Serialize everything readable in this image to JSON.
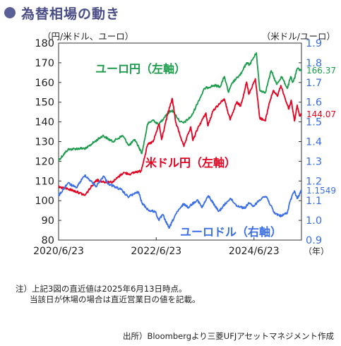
{
  "header": {
    "title": "為替相場の動き"
  },
  "units": {
    "left": "（円/米ドル、ユーロ）",
    "right": "（米ドル/ユーロ）",
    "x": "（年）"
  },
  "notes": {
    "line1": "注）上記3図の直近値は2025年6月13日時点。",
    "line2": "当該日が休場の場合は直近営業日の値を記載。"
  },
  "source": "出所）Bloombergより三菱UFJアセットマネジメント作成",
  "colors": {
    "eurjpy": "#1a9c4a",
    "usdjpy": "#e6001f",
    "eurusd": "#3a6ee8",
    "title": "#4a4d86",
    "right_axis": "#3a6ee8"
  },
  "chart_data": {
    "type": "line",
    "x_ticks": [
      "2020/6/23",
      "2022/6/23",
      "2024/6/23"
    ],
    "x_range": [
      "2020-06-23",
      "2025-06-13"
    ],
    "y_left": {
      "ticks": [
        80,
        90,
        100,
        110,
        120,
        130,
        140,
        150,
        160,
        170,
        180
      ],
      "range": [
        80,
        180
      ]
    },
    "y_right": {
      "ticks": [
        0.9,
        1.0,
        1.1,
        1.2,
        1.3,
        1.4,
        1.5,
        1.6,
        1.7,
        1.8,
        1.9
      ],
      "range": [
        0.9,
        1.9
      ]
    },
    "grid": false,
    "series": [
      {
        "name": "ユーロ円（左軸）",
        "axis": "left",
        "last_label": "166.37",
        "points": [
          [
            "2020-06-23",
            120.5
          ],
          [
            "2020-09-01",
            126
          ],
          [
            "2020-12-01",
            126.5
          ],
          [
            "2021-01-15",
            126.5
          ],
          [
            "2021-03-01",
            129
          ],
          [
            "2021-05-20",
            133
          ],
          [
            "2021-08-01",
            130
          ],
          [
            "2021-10-15",
            133
          ],
          [
            "2021-12-01",
            128
          ],
          [
            "2022-01-15",
            131
          ],
          [
            "2022-03-08",
            124
          ],
          [
            "2022-04-20",
            139
          ],
          [
            "2022-06-01",
            141
          ],
          [
            "2022-07-10",
            138.5
          ],
          [
            "2022-09-10",
            144
          ],
          [
            "2022-10-20",
            146
          ],
          [
            "2022-12-20",
            140
          ],
          [
            "2023-01-15",
            139.5
          ],
          [
            "2023-03-15",
            143
          ],
          [
            "2023-05-01",
            150
          ],
          [
            "2023-06-20",
            157
          ],
          [
            "2023-08-28",
            158.5
          ],
          [
            "2023-10-15",
            158
          ],
          [
            "2023-11-15",
            163
          ],
          [
            "2023-12-15",
            155
          ],
          [
            "2024-01-15",
            160
          ],
          [
            "2024-03-20",
            164.5
          ],
          [
            "2024-04-29",
            170
          ],
          [
            "2024-05-20",
            169
          ],
          [
            "2024-07-11",
            175
          ],
          [
            "2024-08-05",
            156
          ],
          [
            "2024-09-16",
            155
          ],
          [
            "2024-10-30",
            166
          ],
          [
            "2024-12-10",
            159
          ],
          [
            "2025-01-15",
            163
          ],
          [
            "2025-02-28",
            157
          ],
          [
            "2025-03-25",
            163
          ],
          [
            "2025-04-07",
            160
          ],
          [
            "2025-04-22",
            162
          ],
          [
            "2025-05-12",
            167
          ],
          [
            "2025-06-13",
            166.37
          ]
        ]
      },
      {
        "name": "米ドル円（左軸）",
        "axis": "left",
        "last_label": "144.07",
        "points": [
          [
            "2020-06-23",
            107
          ],
          [
            "2020-09-01",
            106
          ],
          [
            "2020-11-15",
            104.3
          ],
          [
            "2021-01-06",
            102.7
          ],
          [
            "2021-03-31",
            110.5
          ],
          [
            "2021-06-01",
            109.5
          ],
          [
            "2021-08-01",
            109.5
          ],
          [
            "2021-10-20",
            114.2
          ],
          [
            "2021-12-15",
            113.5
          ],
          [
            "2022-01-15",
            114.5
          ],
          [
            "2022-03-01",
            115
          ],
          [
            "2022-04-20",
            128.5
          ],
          [
            "2022-06-01",
            130
          ],
          [
            "2022-07-14",
            139
          ],
          [
            "2022-08-02",
            131
          ],
          [
            "2022-09-15",
            143.5
          ],
          [
            "2022-10-21",
            151.9
          ],
          [
            "2022-11-15",
            140
          ],
          [
            "2023-01-16",
            127.5
          ],
          [
            "2023-03-08",
            137.5
          ],
          [
            "2023-03-24",
            130.5
          ],
          [
            "2023-05-01",
            137
          ],
          [
            "2023-06-30",
            144.5
          ],
          [
            "2023-07-14",
            138
          ],
          [
            "2023-08-25",
            146
          ],
          [
            "2023-10-20",
            150
          ],
          [
            "2023-11-13",
            151.7
          ],
          [
            "2023-12-28",
            141
          ],
          [
            "2024-02-15",
            150
          ],
          [
            "2024-03-15",
            148
          ],
          [
            "2024-04-29",
            160.2
          ],
          [
            "2024-05-15",
            154
          ],
          [
            "2024-07-03",
            161.9
          ],
          [
            "2024-08-05",
            142
          ],
          [
            "2024-09-16",
            140.5
          ],
          [
            "2024-10-15",
            149.5
          ],
          [
            "2024-11-15",
            156
          ],
          [
            "2024-12-15",
            153
          ],
          [
            "2025-01-10",
            158.5
          ],
          [
            "2025-02-20",
            150
          ],
          [
            "2025-03-11",
            146.5
          ],
          [
            "2025-03-28",
            151
          ],
          [
            "2025-04-22",
            140.5
          ],
          [
            "2025-05-12",
            148.5
          ],
          [
            "2025-05-29",
            143
          ],
          [
            "2025-06-13",
            144.07
          ]
        ]
      },
      {
        "name": "ユーロドル（右軸）",
        "axis": "right",
        "last_label": "1.1549",
        "points": [
          [
            "2020-06-23",
            1.125
          ],
          [
            "2020-09-01",
            1.19
          ],
          [
            "2020-11-01",
            1.165
          ],
          [
            "2021-01-06",
            1.23
          ],
          [
            "2021-03-31",
            1.172
          ],
          [
            "2021-05-25",
            1.225
          ],
          [
            "2021-07-01",
            1.185
          ],
          [
            "2021-08-20",
            1.17
          ],
          [
            "2021-10-01",
            1.157
          ],
          [
            "2021-11-24",
            1.12
          ],
          [
            "2022-02-10",
            1.145
          ],
          [
            "2022-03-07",
            1.09
          ],
          [
            "2022-04-28",
            1.05
          ],
          [
            "2022-06-15",
            1.045
          ],
          [
            "2022-07-14",
            1.0
          ],
          [
            "2022-08-10",
            1.03
          ],
          [
            "2022-09-27",
            0.96
          ],
          [
            "2022-11-15",
            1.03
          ],
          [
            "2023-01-15",
            1.085
          ],
          [
            "2023-02-15",
            1.065
          ],
          [
            "2023-04-26",
            1.105
          ],
          [
            "2023-05-31",
            1.065
          ],
          [
            "2023-07-18",
            1.125
          ],
          [
            "2023-10-03",
            1.045
          ],
          [
            "2023-12-28",
            1.112
          ],
          [
            "2024-02-15",
            1.075
          ],
          [
            "2024-04-16",
            1.062
          ],
          [
            "2024-05-15",
            1.09
          ],
          [
            "2024-06-15",
            1.07
          ],
          [
            "2024-08-26",
            1.118
          ],
          [
            "2024-09-25",
            1.12
          ],
          [
            "2024-11-22",
            1.037
          ],
          [
            "2025-01-13",
            1.022
          ],
          [
            "2025-02-28",
            1.04
          ],
          [
            "2025-03-18",
            1.094
          ],
          [
            "2025-04-21",
            1.15
          ],
          [
            "2025-05-12",
            1.11
          ],
          [
            "2025-06-13",
            1.1549
          ]
        ]
      }
    ]
  }
}
